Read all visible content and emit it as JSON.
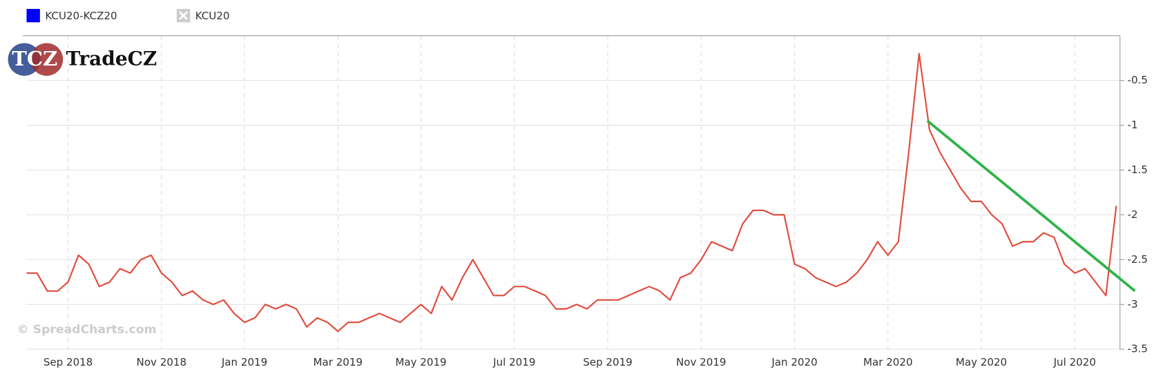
{
  "chart_data": {
    "type": "line",
    "watermarks": {
      "logo": "TCZ",
      "brand": "TradeCZ",
      "credit": "© SpreadCharts.com"
    },
    "categories": [
      null,
      null,
      null,
      null,
      "Sep 2018",
      null,
      null,
      null,
      null,
      null,
      null,
      null,
      null,
      "Nov 2018",
      null,
      null,
      null,
      null,
      null,
      null,
      null,
      "Jan 2019",
      null,
      null,
      null,
      null,
      null,
      null,
      null,
      null,
      "Mar 2019",
      null,
      null,
      null,
      null,
      null,
      null,
      null,
      "May 2019",
      null,
      null,
      null,
      null,
      null,
      null,
      null,
      null,
      "Jul 2019",
      null,
      null,
      null,
      null,
      null,
      null,
      null,
      null,
      "Sep 2019",
      null,
      null,
      null,
      null,
      null,
      null,
      null,
      null,
      "Nov 2019",
      null,
      null,
      null,
      null,
      null,
      null,
      null,
      null,
      "Jan 2020",
      null,
      null,
      null,
      null,
      null,
      null,
      null,
      null,
      "Mar 2020",
      null,
      null,
      null,
      null,
      null,
      null,
      null,
      null,
      "May 2020",
      null,
      null,
      null,
      null,
      null,
      null,
      null,
      null,
      "Jul 2020",
      null,
      null,
      null,
      null
    ],
    "series": [
      {
        "name": "KCU20-KCZ20",
        "color": "#e04b3c",
        "legend_color": "#0000ff",
        "values": [
          -2.65,
          -2.65,
          -2.85,
          -2.85,
          -2.75,
          -2.45,
          -2.55,
          -2.8,
          -2.75,
          -2.6,
          -2.65,
          -2.5,
          -2.45,
          -2.65,
          -2.75,
          -2.9,
          -2.85,
          -2.95,
          -3.0,
          -2.95,
          -3.1,
          -3.2,
          -3.15,
          -3.0,
          -3.05,
          -3.0,
          -3.05,
          -3.25,
          -3.15,
          -3.2,
          -3.3,
          -3.2,
          -3.2,
          -3.15,
          -3.1,
          -3.15,
          -3.2,
          -3.1,
          -3.0,
          -3.1,
          -2.8,
          -2.95,
          -2.7,
          -2.5,
          -2.7,
          -2.9,
          -2.9,
          -2.8,
          -2.8,
          -2.85,
          -2.9,
          -3.05,
          -3.05,
          -3.0,
          -3.05,
          -2.95,
          -2.95,
          -2.95,
          -2.9,
          -2.85,
          -2.8,
          -2.85,
          -2.95,
          -2.7,
          -2.65,
          -2.5,
          -2.3,
          -2.35,
          -2.4,
          -2.1,
          -1.95,
          -1.95,
          -2.0,
          -2.0,
          -2.55,
          -2.6,
          -2.7,
          -2.75,
          -2.8,
          -2.75,
          -2.65,
          -2.5,
          -2.3,
          -2.45,
          -2.3,
          -1.3,
          -0.2,
          -1.05,
          -1.3,
          -1.5,
          -1.7,
          -1.85,
          -1.85,
          -2.0,
          -2.1,
          -2.35,
          -2.3,
          -2.3,
          -2.2,
          -2.25,
          -2.55,
          -2.65,
          -2.6,
          -2.75,
          -2.9,
          -1.9
        ]
      },
      {
        "name": "KCU20",
        "color": "#aaaaaa",
        "hidden": true
      }
    ],
    "trendline": {
      "color": "#2db34a",
      "x": [
        86.8,
        106.8
      ],
      "values": [
        -0.95,
        -2.85
      ]
    },
    "ylim": [
      -3.5,
      0
    ],
    "yticks": [
      -3.5,
      -3.0,
      -2.5,
      -2.0,
      -1.5,
      -1.0,
      -0.5
    ],
    "grid": true
  }
}
